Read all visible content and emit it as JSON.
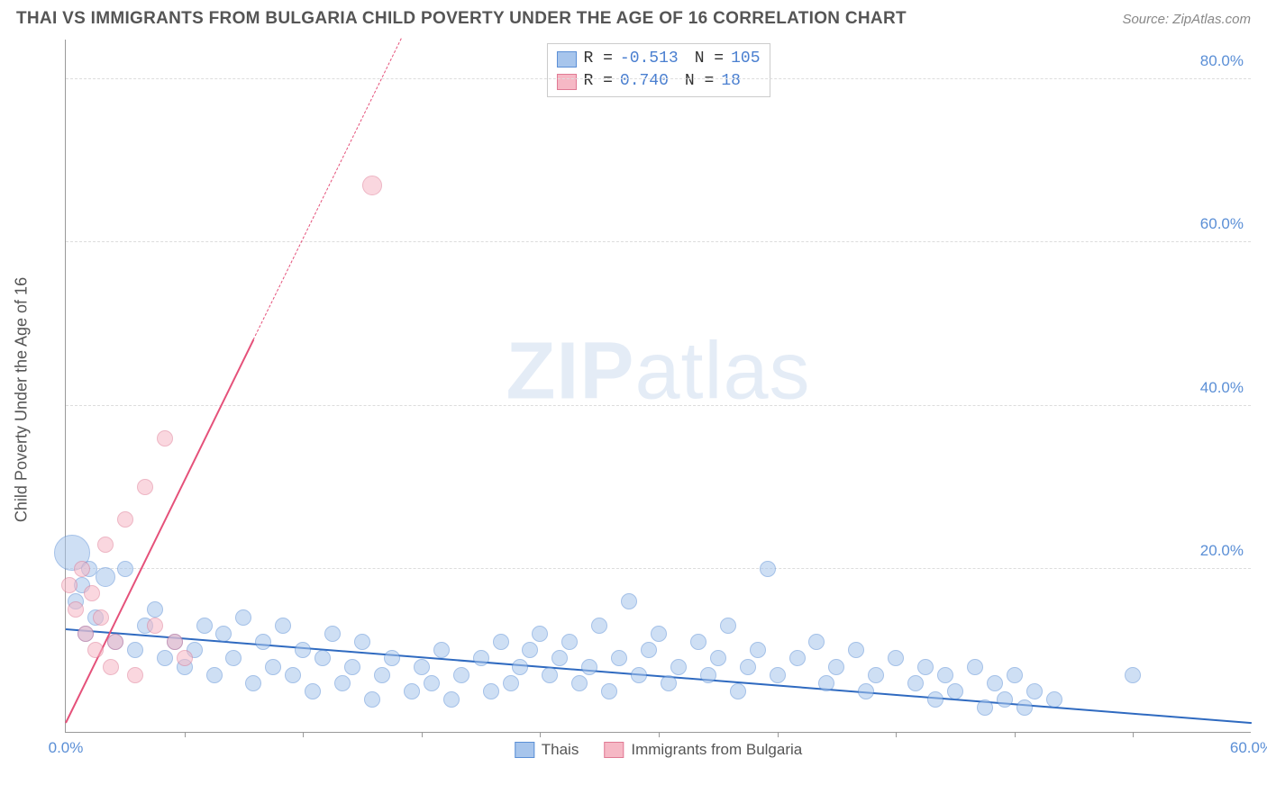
{
  "title": "THAI VS IMMIGRANTS FROM BULGARIA CHILD POVERTY UNDER THE AGE OF 16 CORRELATION CHART",
  "source": "Source: ZipAtlas.com",
  "watermark_bold": "ZIP",
  "watermark_light": "atlas",
  "ylabel": "Child Poverty Under the Age of 16",
  "chart": {
    "type": "scatter",
    "xlim": [
      0,
      60
    ],
    "ylim": [
      0,
      85
    ],
    "x_ticks": [
      0,
      60
    ],
    "x_ticklabels": [
      "0.0%",
      "60.0%"
    ],
    "x_minor_ticks": [
      6,
      12,
      18,
      24,
      30,
      36,
      42,
      48,
      54
    ],
    "y_ticks": [
      20,
      40,
      60,
      80
    ],
    "y_ticklabels": [
      "20.0%",
      "40.0%",
      "60.0%",
      "80.0%"
    ],
    "background_color": "#ffffff",
    "grid_color": "#dddddd",
    "axis_color": "#999999",
    "tick_label_color": "#5b8fd6",
    "label_color": "#555555",
    "series": [
      {
        "name": "Thais",
        "fill": "#a7c5ec",
        "stroke": "#5b8fd6",
        "fill_opacity": 0.55,
        "trend": {
          "x1": 0,
          "y1": 12.5,
          "x2": 60,
          "y2": 1.0,
          "color": "#2f6ac0",
          "width": 2.5,
          "dash": "solid"
        },
        "points": [
          {
            "x": 0.3,
            "y": 22,
            "r": 20
          },
          {
            "x": 0.5,
            "y": 16,
            "r": 9
          },
          {
            "x": 0.8,
            "y": 18,
            "r": 9
          },
          {
            "x": 1.0,
            "y": 12,
            "r": 9
          },
          {
            "x": 1.2,
            "y": 20,
            "r": 9
          },
          {
            "x": 1.5,
            "y": 14,
            "r": 9
          },
          {
            "x": 2.0,
            "y": 19,
            "r": 11
          },
          {
            "x": 2.5,
            "y": 11,
            "r": 9
          },
          {
            "x": 3.0,
            "y": 20,
            "r": 9
          },
          {
            "x": 3.5,
            "y": 10,
            "r": 9
          },
          {
            "x": 4.0,
            "y": 13,
            "r": 9
          },
          {
            "x": 4.5,
            "y": 15,
            "r": 9
          },
          {
            "x": 5.0,
            "y": 9,
            "r": 9
          },
          {
            "x": 5.5,
            "y": 11,
            "r": 9
          },
          {
            "x": 6.0,
            "y": 8,
            "r": 9
          },
          {
            "x": 6.5,
            "y": 10,
            "r": 9
          },
          {
            "x": 7.0,
            "y": 13,
            "r": 9
          },
          {
            "x": 7.5,
            "y": 7,
            "r": 9
          },
          {
            "x": 8.0,
            "y": 12,
            "r": 9
          },
          {
            "x": 8.5,
            "y": 9,
            "r": 9
          },
          {
            "x": 9.0,
            "y": 14,
            "r": 9
          },
          {
            "x": 9.5,
            "y": 6,
            "r": 9
          },
          {
            "x": 10.0,
            "y": 11,
            "r": 9
          },
          {
            "x": 10.5,
            "y": 8,
            "r": 9
          },
          {
            "x": 11.0,
            "y": 13,
            "r": 9
          },
          {
            "x": 11.5,
            "y": 7,
            "r": 9
          },
          {
            "x": 12.0,
            "y": 10,
            "r": 9
          },
          {
            "x": 12.5,
            "y": 5,
            "r": 9
          },
          {
            "x": 13.0,
            "y": 9,
            "r": 9
          },
          {
            "x": 13.5,
            "y": 12,
            "r": 9
          },
          {
            "x": 14.0,
            "y": 6,
            "r": 9
          },
          {
            "x": 14.5,
            "y": 8,
            "r": 9
          },
          {
            "x": 15.0,
            "y": 11,
            "r": 9
          },
          {
            "x": 15.5,
            "y": 4,
            "r": 9
          },
          {
            "x": 16.0,
            "y": 7,
            "r": 9
          },
          {
            "x": 16.5,
            "y": 9,
            "r": 9
          },
          {
            "x": 17.5,
            "y": 5,
            "r": 9
          },
          {
            "x": 18.0,
            "y": 8,
            "r": 9
          },
          {
            "x": 18.5,
            "y": 6,
            "r": 9
          },
          {
            "x": 19.0,
            "y": 10,
            "r": 9
          },
          {
            "x": 19.5,
            "y": 4,
            "r": 9
          },
          {
            "x": 20.0,
            "y": 7,
            "r": 9
          },
          {
            "x": 21.0,
            "y": 9,
            "r": 9
          },
          {
            "x": 21.5,
            "y": 5,
            "r": 9
          },
          {
            "x": 22.0,
            "y": 11,
            "r": 9
          },
          {
            "x": 22.5,
            "y": 6,
            "r": 9
          },
          {
            "x": 23.0,
            "y": 8,
            "r": 9
          },
          {
            "x": 23.5,
            "y": 10,
            "r": 9
          },
          {
            "x": 24.0,
            "y": 12,
            "r": 9
          },
          {
            "x": 24.5,
            "y": 7,
            "r": 9
          },
          {
            "x": 25.0,
            "y": 9,
            "r": 9
          },
          {
            "x": 25.5,
            "y": 11,
            "r": 9
          },
          {
            "x": 26.0,
            "y": 6,
            "r": 9
          },
          {
            "x": 26.5,
            "y": 8,
            "r": 9
          },
          {
            "x": 27.0,
            "y": 13,
            "r": 9
          },
          {
            "x": 27.5,
            "y": 5,
            "r": 9
          },
          {
            "x": 28.0,
            "y": 9,
            "r": 9
          },
          {
            "x": 28.5,
            "y": 16,
            "r": 9
          },
          {
            "x": 29.0,
            "y": 7,
            "r": 9
          },
          {
            "x": 29.5,
            "y": 10,
            "r": 9
          },
          {
            "x": 30.0,
            "y": 12,
            "r": 9
          },
          {
            "x": 30.5,
            "y": 6,
            "r": 9
          },
          {
            "x": 31.0,
            "y": 8,
            "r": 9
          },
          {
            "x": 32.0,
            "y": 11,
            "r": 9
          },
          {
            "x": 32.5,
            "y": 7,
            "r": 9
          },
          {
            "x": 33.0,
            "y": 9,
            "r": 9
          },
          {
            "x": 33.5,
            "y": 13,
            "r": 9
          },
          {
            "x": 34.0,
            "y": 5,
            "r": 9
          },
          {
            "x": 34.5,
            "y": 8,
            "r": 9
          },
          {
            "x": 35.0,
            "y": 10,
            "r": 9
          },
          {
            "x": 35.5,
            "y": 20,
            "r": 9
          },
          {
            "x": 36.0,
            "y": 7,
            "r": 9
          },
          {
            "x": 37.0,
            "y": 9,
            "r": 9
          },
          {
            "x": 38.0,
            "y": 11,
            "r": 9
          },
          {
            "x": 38.5,
            "y": 6,
            "r": 9
          },
          {
            "x": 39.0,
            "y": 8,
            "r": 9
          },
          {
            "x": 40.0,
            "y": 10,
            "r": 9
          },
          {
            "x": 40.5,
            "y": 5,
            "r": 9
          },
          {
            "x": 41.0,
            "y": 7,
            "r": 9
          },
          {
            "x": 42.0,
            "y": 9,
            "r": 9
          },
          {
            "x": 43.0,
            "y": 6,
            "r": 9
          },
          {
            "x": 43.5,
            "y": 8,
            "r": 9
          },
          {
            "x": 44.0,
            "y": 4,
            "r": 9
          },
          {
            "x": 44.5,
            "y": 7,
            "r": 9
          },
          {
            "x": 45.0,
            "y": 5,
            "r": 9
          },
          {
            "x": 46.0,
            "y": 8,
            "r": 9
          },
          {
            "x": 46.5,
            "y": 3,
            "r": 9
          },
          {
            "x": 47.0,
            "y": 6,
            "r": 9
          },
          {
            "x": 47.5,
            "y": 4,
            "r": 9
          },
          {
            "x": 48.0,
            "y": 7,
            "r": 9
          },
          {
            "x": 48.5,
            "y": 3,
            "r": 9
          },
          {
            "x": 49.0,
            "y": 5,
            "r": 9
          },
          {
            "x": 50.0,
            "y": 4,
            "r": 9
          },
          {
            "x": 54.0,
            "y": 7,
            "r": 9
          }
        ]
      },
      {
        "name": "Immigrants from Bulgaria",
        "fill": "#f6b8c5",
        "stroke": "#e07a94",
        "fill_opacity": 0.55,
        "trend": {
          "x1": 0,
          "y1": 1.0,
          "x2": 9.5,
          "y2": 48,
          "color": "#e5517a",
          "width": 2,
          "dash": "solid"
        },
        "trend_ext": {
          "x1": 9.5,
          "y1": 48,
          "x2": 17,
          "y2": 85,
          "color": "#e5517a",
          "width": 1.5,
          "dash": "dashed"
        },
        "points": [
          {
            "x": 0.2,
            "y": 18,
            "r": 9
          },
          {
            "x": 0.5,
            "y": 15,
            "r": 9
          },
          {
            "x": 0.8,
            "y": 20,
            "r": 9
          },
          {
            "x": 1.0,
            "y": 12,
            "r": 9
          },
          {
            "x": 1.3,
            "y": 17,
            "r": 9
          },
          {
            "x": 1.5,
            "y": 10,
            "r": 9
          },
          {
            "x": 1.8,
            "y": 14,
            "r": 9
          },
          {
            "x": 2.0,
            "y": 23,
            "r": 9
          },
          {
            "x": 2.3,
            "y": 8,
            "r": 9
          },
          {
            "x": 2.5,
            "y": 11,
            "r": 9
          },
          {
            "x": 3.0,
            "y": 26,
            "r": 9
          },
          {
            "x": 3.5,
            "y": 7,
            "r": 9
          },
          {
            "x": 4.0,
            "y": 30,
            "r": 9
          },
          {
            "x": 4.5,
            "y": 13,
            "r": 9
          },
          {
            "x": 5.0,
            "y": 36,
            "r": 9
          },
          {
            "x": 5.5,
            "y": 11,
            "r": 9
          },
          {
            "x": 6.0,
            "y": 9,
            "r": 9
          },
          {
            "x": 15.5,
            "y": 67,
            "r": 11
          }
        ]
      }
    ]
  },
  "stats_legend": {
    "rows": [
      {
        "swatch_fill": "#a7c5ec",
        "swatch_stroke": "#5b8fd6",
        "r_label": "R =",
        "r_val": "-0.513",
        "n_label": "N =",
        "n_val": "105"
      },
      {
        "swatch_fill": "#f6b8c5",
        "swatch_stroke": "#e07a94",
        "r_label": "R =",
        "r_val": " 0.740",
        "n_label": "N =",
        "n_val": " 18"
      }
    ]
  },
  "bottom_legend": [
    {
      "swatch_fill": "#a7c5ec",
      "swatch_stroke": "#5b8fd6",
      "label": "Thais"
    },
    {
      "swatch_fill": "#f6b8c5",
      "swatch_stroke": "#e07a94",
      "label": "Immigrants from Bulgaria"
    }
  ]
}
